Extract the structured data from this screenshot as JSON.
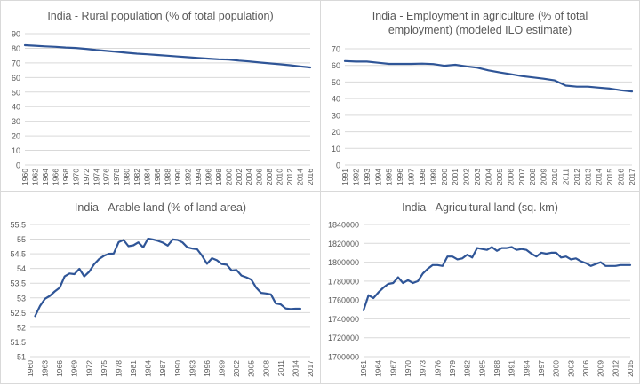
{
  "colors": {
    "line": "#2f5597",
    "grid": "#d9d9d9",
    "axis_text": "#595959",
    "title": "#595959"
  },
  "chart_data": [
    {
      "id": "rural",
      "type": "line",
      "title": "India - Rural population (% of total population)",
      "xlabel": "",
      "ylabel": "",
      "ylim": [
        0,
        90
      ],
      "yticks": [
        0,
        10,
        20,
        30,
        40,
        50,
        60,
        70,
        80,
        90
      ],
      "xlim": [
        1960,
        2016
      ],
      "xtick_step": 2,
      "grid": true,
      "x": [
        1960,
        1962,
        1964,
        1966,
        1968,
        1970,
        1972,
        1974,
        1976,
        1978,
        1980,
        1982,
        1984,
        1986,
        1988,
        1990,
        1992,
        1994,
        1996,
        1998,
        2000,
        2002,
        2004,
        2006,
        2008,
        2010,
        2012,
        2014,
        2016
      ],
      "values": [
        82.1,
        81.7,
        81.3,
        81.0,
        80.5,
        80.2,
        79.6,
        78.8,
        78.2,
        77.6,
        76.9,
        76.3,
        75.9,
        75.4,
        74.9,
        74.4,
        73.9,
        73.4,
        72.9,
        72.5,
        72.3,
        71.6,
        71.0,
        70.3,
        69.7,
        69.1,
        68.4,
        67.6,
        66.9
      ]
    },
    {
      "id": "employment",
      "type": "line",
      "title": "India - Employment in agriculture (% of total\nemployment) (modeled ILO estimate)",
      "xlabel": "",
      "ylabel": "",
      "ylim": [
        0,
        70
      ],
      "yticks": [
        0,
        10,
        20,
        30,
        40,
        50,
        60,
        70
      ],
      "xlim": [
        1991,
        2017
      ],
      "xtick_step": 1,
      "grid": true,
      "x": [
        1991,
        1992,
        1993,
        1994,
        1995,
        1996,
        1997,
        1998,
        1999,
        2000,
        2001,
        2002,
        2003,
        2004,
        2005,
        2006,
        2007,
        2008,
        2009,
        2010,
        2011,
        2012,
        2013,
        2014,
        2015,
        2016,
        2017
      ],
      "values": [
        62.6,
        62.3,
        62.3,
        61.6,
        60.9,
        60.9,
        60.9,
        61.1,
        60.8,
        59.8,
        60.4,
        59.4,
        58.6,
        57.0,
        55.8,
        54.7,
        53.6,
        52.8,
        52.0,
        51.0,
        47.8,
        47.2,
        47.2,
        46.6,
        46.0,
        45.0,
        44.3
      ]
    },
    {
      "id": "arable",
      "type": "line",
      "title": "India - Arable land (% of land area)",
      "xlabel": "",
      "ylabel": "",
      "ylim": [
        51,
        55.5
      ],
      "yticks": [
        51,
        51.5,
        52,
        52.5,
        53,
        53.5,
        54,
        54.5,
        55,
        55.5
      ],
      "ytick_labels": [
        "51",
        "51.5",
        "52",
        "52.5",
        "53",
        "53.5",
        "54",
        "54.5",
        "55",
        "55.5"
      ],
      "xlim": [
        1960,
        2017
      ],
      "xtick_step": 3,
      "grid": true,
      "x": [
        1961,
        1962,
        1963,
        1964,
        1965,
        1966,
        1967,
        1968,
        1969,
        1970,
        1971,
        1972,
        1973,
        1974,
        1975,
        1976,
        1977,
        1978,
        1979,
        1980,
        1981,
        1982,
        1983,
        1984,
        1985,
        1986,
        1987,
        1988,
        1989,
        1990,
        1991,
        1992,
        1993,
        1994,
        1995,
        1996,
        1997,
        1998,
        1999,
        2000,
        2001,
        2002,
        2003,
        2004,
        2005,
        2006,
        2007,
        2008,
        2009,
        2010,
        2011,
        2012,
        2013,
        2014,
        2015
      ],
      "values": [
        52.38,
        52.73,
        52.97,
        53.07,
        53.22,
        53.35,
        53.73,
        53.83,
        53.81,
        53.99,
        53.73,
        53.89,
        54.14,
        54.32,
        54.43,
        54.5,
        54.51,
        54.9,
        54.97,
        54.76,
        54.79,
        54.89,
        54.72,
        55.02,
        54.99,
        54.94,
        54.88,
        54.78,
        54.99,
        54.97,
        54.89,
        54.72,
        54.68,
        54.65,
        54.43,
        54.16,
        54.35,
        54.28,
        54.15,
        54.13,
        53.93,
        53.95,
        53.76,
        53.7,
        53.62,
        53.35,
        53.17,
        53.15,
        53.12,
        52.81,
        52.78,
        52.64,
        52.62,
        52.63,
        52.63
      ]
    },
    {
      "id": "agricultural",
      "type": "line",
      "title": "India - Agricultural land (sq. km)",
      "xlabel": "",
      "ylabel": "",
      "ylim": [
        1700000,
        1840000
      ],
      "yticks": [
        1700000,
        1720000,
        1740000,
        1760000,
        1780000,
        1800000,
        1820000,
        1840000
      ],
      "xlim": [
        1961,
        2015
      ],
      "xtick_step": 3,
      "grid": true,
      "x": [
        1961,
        1962,
        1963,
        1964,
        1965,
        1966,
        1967,
        1968,
        1969,
        1970,
        1971,
        1972,
        1973,
        1974,
        1975,
        1976,
        1977,
        1978,
        1979,
        1980,
        1981,
        1982,
        1983,
        1984,
        1985,
        1986,
        1987,
        1988,
        1989,
        1990,
        1991,
        1992,
        1993,
        1994,
        1995,
        1996,
        1997,
        1998,
        1999,
        2000,
        2001,
        2002,
        2003,
        2004,
        2005,
        2006,
        2007,
        2008,
        2009,
        2010,
        2011,
        2012,
        2013,
        2014,
        2015
      ],
      "values": [
        1749000,
        1765000,
        1762000,
        1768000,
        1773000,
        1777000,
        1778000,
        1784000,
        1778000,
        1781000,
        1778000,
        1780000,
        1788000,
        1793000,
        1797000,
        1797000,
        1796000,
        1806000,
        1806000,
        1803000,
        1804000,
        1808000,
        1805000,
        1815000,
        1814000,
        1813000,
        1816000,
        1812000,
        1815000,
        1815000,
        1816000,
        1813000,
        1814000,
        1813000,
        1809000,
        1806000,
        1810000,
        1809000,
        1810000,
        1810000,
        1805000,
        1806000,
        1803000,
        1804000,
        1801000,
        1799000,
        1796000,
        1798000,
        1800000,
        1796000,
        1796000,
        1796000,
        1797000,
        1797000,
        1797000
      ]
    }
  ]
}
